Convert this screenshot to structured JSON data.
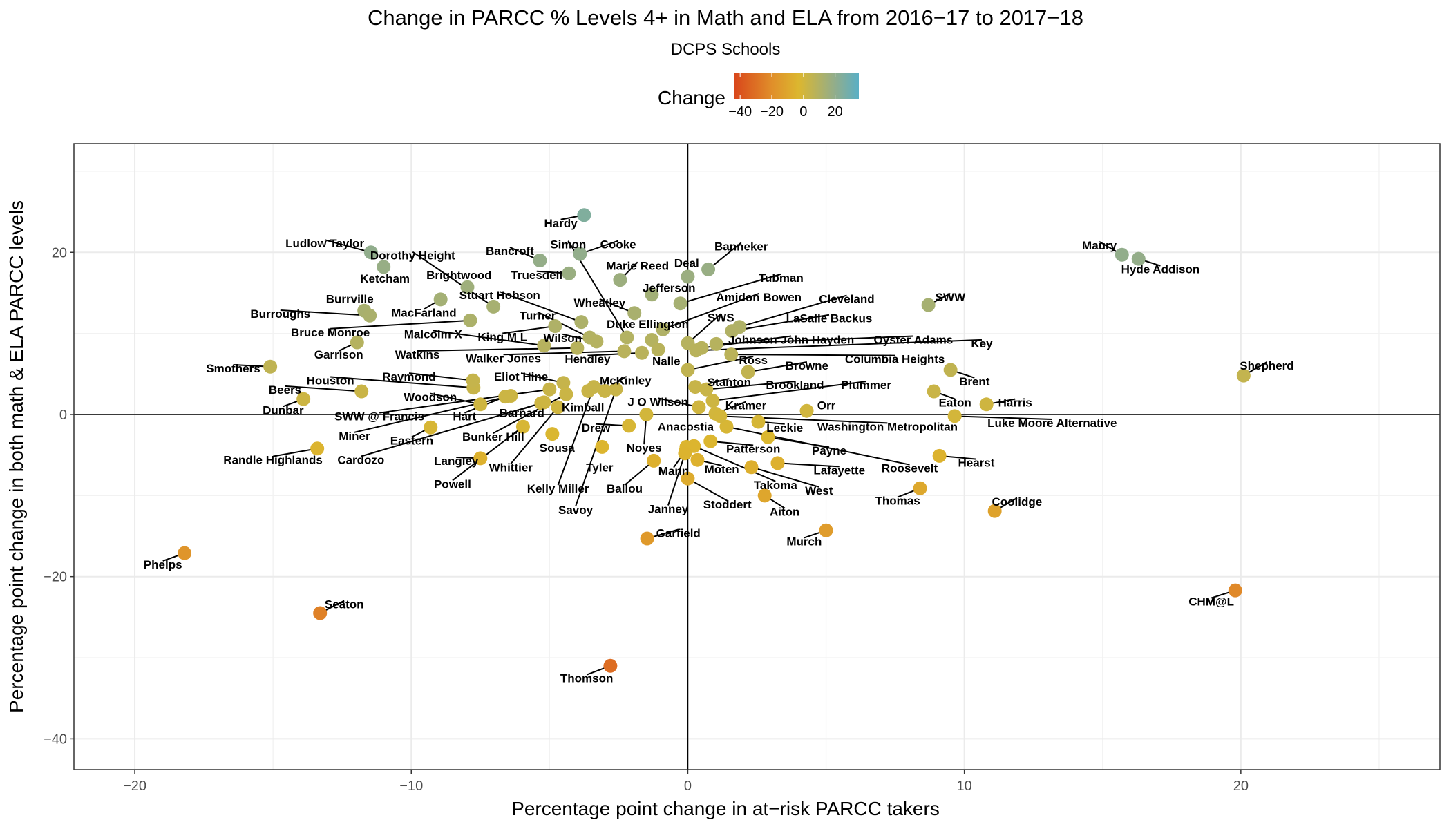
{
  "chart_data": {
    "type": "scatter",
    "title": "Change in PARCC % Levels 4+ in Math and ELA from 2016−17 to 2017−18",
    "subtitle": "DCPS Schools",
    "xlabel": "Percentage point change in at−risk PARCC takers",
    "ylabel": "Percentage point change in both math & ELA PARCC levels",
    "xlim": [
      -22.2,
      27.2
    ],
    "ylim": [
      -43.8,
      33.4
    ],
    "x_ticks": [
      "−20",
      "−10",
      "0",
      "10",
      "20"
    ],
    "y_ticks": [
      "−40",
      "−20",
      "0",
      "20"
    ],
    "x_tick_values": [
      -20,
      -10,
      0,
      10,
      20
    ],
    "y_tick_values": [
      -40,
      -20,
      0,
      20
    ],
    "grid": true,
    "reference_lines": {
      "x": 0,
      "y": 0
    },
    "legend": {
      "title": "Change",
      "placement": "top",
      "tick_labels": [
        "−40",
        "−20",
        "0",
        "20"
      ],
      "tick_values": [
        -40,
        -20,
        0,
        20
      ],
      "range": [
        -44,
        35
      ],
      "colors": {
        "-44": "#d9461b",
        "-20": "#e08e2a",
        "-3": "#dcb72f",
        "20": "#91ad8c",
        "35": "#5aafc5"
      }
    },
    "color_by": "y",
    "points": [
      {
        "name": "Hardy",
        "x": -3.75,
        "y": 24.6
      },
      {
        "name": "Ludlow Taylor",
        "x": -11.46,
        "y": 20.0
      },
      {
        "name": "Ketcham",
        "x": -11.0,
        "y": 18.2
      },
      {
        "name": "Dorothy Height",
        "x": -7.03,
        "y": 13.3
      },
      {
        "name": "Brightwood",
        "x": -7.97,
        "y": 15.7
      },
      {
        "name": "MacFarland",
        "x": -8.94,
        "y": 14.2
      },
      {
        "name": "Bancroft",
        "x": -5.35,
        "y": 19.0
      },
      {
        "name": "Simon",
        "x": -2.2,
        "y": 9.5
      },
      {
        "name": "Cooke",
        "x": -3.9,
        "y": 19.8
      },
      {
        "name": "Truesdell",
        "x": -4.3,
        "y": 17.4
      },
      {
        "name": "Marie Reed",
        "x": -2.45,
        "y": 16.6
      },
      {
        "name": "Jefferson",
        "x": -1.3,
        "y": 14.8
      },
      {
        "name": "Deal",
        "x": 0.0,
        "y": 17.0
      },
      {
        "name": "Banneker",
        "x": 0.74,
        "y": 17.9
      },
      {
        "name": "Tubman",
        "x": -0.27,
        "y": 13.7
      },
      {
        "name": "Amidon Bowen",
        "x": -0.9,
        "y": 10.5
      },
      {
        "name": "Cleveland",
        "x": 1.87,
        "y": 10.8
      },
      {
        "name": "LaSalle Backus",
        "x": 1.6,
        "y": 10.3
      },
      {
        "name": "Wheatley",
        "x": -1.93,
        "y": 12.5
      },
      {
        "name": "Stuart Hobson",
        "x": -3.85,
        "y": 11.4
      },
      {
        "name": "Burrville",
        "x": -11.7,
        "y": 12.8
      },
      {
        "name": "Burroughs",
        "x": -11.5,
        "y": 12.2
      },
      {
        "name": "Bruce Monroe",
        "x": -7.87,
        "y": 11.6
      },
      {
        "name": "Malcolm X",
        "x": -5.2,
        "y": 8.5
      },
      {
        "name": "King M L",
        "x": -4.8,
        "y": 10.9
      },
      {
        "name": "Turner",
        "x": -3.55,
        "y": 9.5
      },
      {
        "name": "Wilson",
        "x": -3.3,
        "y": 9.0
      },
      {
        "name": "Garrison",
        "x": -11.96,
        "y": 8.9
      },
      {
        "name": "Watkins",
        "x": -4.0,
        "y": 8.2
      },
      {
        "name": "Walker Jones",
        "x": -2.3,
        "y": 7.8
      },
      {
        "name": "Hendley",
        "x": -1.66,
        "y": 7.6
      },
      {
        "name": "Duke Ellington",
        "x": -1.3,
        "y": 9.2
      },
      {
        "name": "Nalle",
        "x": -1.07,
        "y": 8.0
      },
      {
        "name": "SWS",
        "x": 0.0,
        "y": 8.8
      },
      {
        "name": "Johnson John Hayden",
        "x": 0.5,
        "y": 8.2
      },
      {
        "name": "Oyster Adams",
        "x": 1.03,
        "y": 8.7
      },
      {
        "name": "Key",
        "x": 0.3,
        "y": 7.9
      },
      {
        "name": "Columbia Heights",
        "x": 1.57,
        "y": 7.4
      },
      {
        "name": "Ross",
        "x": 0.0,
        "y": 5.5
      },
      {
        "name": "Browne",
        "x": 2.18,
        "y": 5.25
      },
      {
        "name": "Stanton",
        "x": 0.27,
        "y": 3.4
      },
      {
        "name": "Brookland",
        "x": 0.67,
        "y": 3.1
      },
      {
        "name": "Plummer",
        "x": 0.9,
        "y": 1.7
      },
      {
        "name": "Smothers",
        "x": -15.1,
        "y": 5.9
      },
      {
        "name": "Houston",
        "x": -7.75,
        "y": 3.3
      },
      {
        "name": "Raymond",
        "x": -7.77,
        "y": 4.2
      },
      {
        "name": "Beers",
        "x": -11.8,
        "y": 2.85
      },
      {
        "name": "Woodson",
        "x": -7.5,
        "y": 1.25
      },
      {
        "name": "Dunbar",
        "x": -13.9,
        "y": 1.9
      },
      {
        "name": "Eliot Hine",
        "x": -4.5,
        "y": 3.9
      },
      {
        "name": "McKinley",
        "x": -3.0,
        "y": 2.9
      },
      {
        "name": "SWW @ Francis",
        "x": -5.0,
        "y": 3.1
      },
      {
        "name": "Hart",
        "x": -6.6,
        "y": 2.2
      },
      {
        "name": "Miner",
        "x": -6.4,
        "y": 2.3
      },
      {
        "name": "Barnard",
        "x": -5.3,
        "y": 1.4
      },
      {
        "name": "Kimball",
        "x": -3.6,
        "y": 2.9
      },
      {
        "name": "Cardozo",
        "x": -5.2,
        "y": 1.5
      },
      {
        "name": "Eastern",
        "x": -9.3,
        "y": -1.6
      },
      {
        "name": "Bunker Hill",
        "x": -4.4,
        "y": 2.5
      },
      {
        "name": "Langley",
        "x": -7.5,
        "y": -5.4
      },
      {
        "name": "Powell",
        "x": -5.96,
        "y": -1.5
      },
      {
        "name": "Whittier",
        "x": -4.7,
        "y": 0.9
      },
      {
        "name": "Sousa",
        "x": -4.9,
        "y": -2.4
      },
      {
        "name": "Kelly Miller",
        "x": -3.4,
        "y": 3.4
      },
      {
        "name": "Savoy",
        "x": -2.6,
        "y": 3.1
      },
      {
        "name": "Drew",
        "x": -2.13,
        "y": -1.4
      },
      {
        "name": "Tyler",
        "x": -3.1,
        "y": -4.0
      },
      {
        "name": "Noyes",
        "x": -1.5,
        "y": 0.0
      },
      {
        "name": "J O Wilson",
        "x": 0.4,
        "y": 0.9
      },
      {
        "name": "Ballou",
        "x": -1.23,
        "y": -5.7
      },
      {
        "name": "Anacostia",
        "x": -0.05,
        "y": -4.0
      },
      {
        "name": "Roosevelt",
        "x": 1.4,
        "y": -1.5
      },
      {
        "name": "Kramer",
        "x": 1.0,
        "y": 0.1
      },
      {
        "name": "Washington Metropolitan",
        "x": 1.17,
        "y": -0.2
      },
      {
        "name": "Leckie",
        "x": 2.55,
        "y": -0.9
      },
      {
        "name": "Payne",
        "x": 2.9,
        "y": -2.8
      },
      {
        "name": "Patterson",
        "x": 0.82,
        "y": -3.3
      },
      {
        "name": "West",
        "x": 2.3,
        "y": -6.5
      },
      {
        "name": "Mann",
        "x": -0.07,
        "y": -4.4
      },
      {
        "name": "Moten",
        "x": 0.35,
        "y": -5.6
      },
      {
        "name": "Takoma",
        "x": 0.22,
        "y": -3.9
      },
      {
        "name": "Janney",
        "x": -0.1,
        "y": -4.8
      },
      {
        "name": "Stoddert",
        "x": 0.0,
        "y": -7.9
      },
      {
        "name": "Lafayette",
        "x": 3.25,
        "y": -6.0
      },
      {
        "name": "Aiton",
        "x": 2.78,
        "y": -10.0
      },
      {
        "name": "Orr",
        "x": 4.3,
        "y": 0.45
      },
      {
        "name": "Murch",
        "x": 5.0,
        "y": -14.3
      },
      {
        "name": "Garfield",
        "x": -1.47,
        "y": -15.3
      },
      {
        "name": "Randle Highlands",
        "x": -13.4,
        "y": -4.2
      },
      {
        "name": "Phelps",
        "x": -18.2,
        "y": -17.1
      },
      {
        "name": "Seaton",
        "x": -13.3,
        "y": -24.5
      },
      {
        "name": "Thomson",
        "x": -2.8,
        "y": -31.0
      },
      {
        "name": "Maury",
        "x": 15.7,
        "y": 19.7
      },
      {
        "name": "Hyde Addison",
        "x": 16.3,
        "y": 19.2
      },
      {
        "name": "SWW",
        "x": 8.7,
        "y": 13.5
      },
      {
        "name": "Shepherd",
        "x": 20.1,
        "y": 4.8
      },
      {
        "name": "Brent",
        "x": 9.5,
        "y": 5.5
      },
      {
        "name": "Eaton",
        "x": 8.9,
        "y": 2.85
      },
      {
        "name": "Harris",
        "x": 10.8,
        "y": 1.25
      },
      {
        "name": "Luke Moore Alternative",
        "x": 9.65,
        "y": -0.2
      },
      {
        "name": "Hearst",
        "x": 9.1,
        "y": -5.1
      },
      {
        "name": "Thomas",
        "x": 8.4,
        "y": -9.1
      },
      {
        "name": "Coolidge",
        "x": 11.1,
        "y": -11.9
      },
      {
        "name": "CHM@L",
        "x": 19.8,
        "y": -21.7
      }
    ]
  }
}
